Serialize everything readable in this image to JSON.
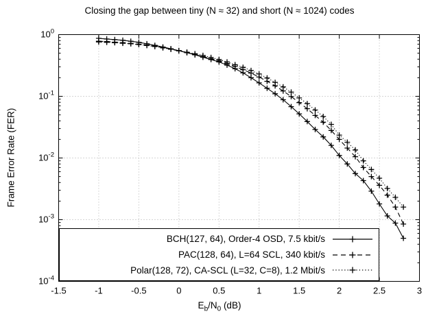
{
  "title": "Closing the gap between tiny (N ≈ 32) and short (N ≈ 1024) codes",
  "axes": {
    "x": {
      "label_parts": {
        "e": "E",
        "b": "b",
        "slash_n": "/N",
        "zero": "0",
        "unit": " (dB)"
      },
      "tick_labels": [
        "-1.5",
        "-1",
        "-0.5",
        "0",
        "0.5",
        "1",
        "1.5",
        "2",
        "2.5",
        "3"
      ],
      "tick_values": [
        -1.5,
        -1,
        -0.5,
        0,
        0.5,
        1,
        1.5,
        2,
        2.5,
        3
      ],
      "min": -1.5,
      "max": 3
    },
    "y": {
      "label": "Frame Error Rate (FER)",
      "base": "10",
      "tick_exponents": [
        "0",
        "-1",
        "-2",
        "-3",
        "-4"
      ],
      "min_exp": -4,
      "max_exp": 0
    }
  },
  "legend": {
    "position": "bottom-left-inside"
  },
  "colors": {
    "line": "#000000",
    "grid": "#a8a8a8",
    "background": "#ffffff",
    "text": "#000000"
  },
  "chart_data": {
    "type": "line",
    "title": "Closing the gap between tiny (N ≈ 32) and short (N ≈ 1024) codes",
    "xlabel": "Eb/N0 (dB)",
    "ylabel": "Frame Error Rate (FER)",
    "xlim": [
      -1.5,
      3
    ],
    "yscale": "log",
    "ylim": [
      0.0001,
      1
    ],
    "grid": true,
    "legend_position": "bottom-left-inside",
    "x": [
      -1.0,
      -0.9,
      -0.8,
      -0.7,
      -0.6,
      -0.5,
      -0.4,
      -0.3,
      -0.2,
      -0.1,
      0.0,
      0.1,
      0.2,
      0.3,
      0.4,
      0.5,
      0.6,
      0.7,
      0.8,
      0.9,
      1.0,
      1.1,
      1.2,
      1.3,
      1.4,
      1.5,
      1.6,
      1.7,
      1.8,
      1.9,
      2.0,
      2.1,
      2.2,
      2.3,
      2.4,
      2.5,
      2.6,
      2.7,
      2.8
    ],
    "series": [
      {
        "name": "BCH(127, 64), Order-4 OSD, 7.5 kbit/s",
        "style": "solid",
        "marker": "plus",
        "values": [
          0.87,
          0.85,
          0.83,
          0.81,
          0.78,
          0.75,
          0.71,
          0.67,
          0.63,
          0.59,
          0.55,
          0.51,
          0.47,
          0.43,
          0.395,
          0.36,
          0.32,
          0.28,
          0.24,
          0.2,
          0.165,
          0.135,
          0.11,
          0.088,
          0.068,
          0.052,
          0.039,
          0.029,
          0.022,
          0.016,
          0.011,
          0.008,
          0.0056,
          0.0043,
          0.0029,
          0.0018,
          0.00115,
          0.00088,
          0.0005
        ]
      },
      {
        "name": "PAC(128, 64), L=64 SCL, 340 kbit/s",
        "style": "dashed",
        "marker": "plus",
        "values": [
          0.78,
          0.77,
          0.755,
          0.74,
          0.72,
          0.7,
          0.675,
          0.645,
          0.615,
          0.58,
          0.545,
          0.51,
          0.475,
          0.44,
          0.405,
          0.375,
          0.34,
          0.305,
          0.27,
          0.238,
          0.205,
          0.175,
          0.148,
          0.122,
          0.099,
          0.079,
          0.063,
          0.049,
          0.038,
          0.028,
          0.02,
          0.0145,
          0.0105,
          0.007,
          0.005,
          0.0036,
          0.0025,
          0.0016,
          0.00085
        ]
      },
      {
        "name": "Polar(128, 72), CA-SCL (L=32, C=8), 1.2 Mbit/s",
        "style": "dotted",
        "marker": "plus",
        "values": [
          0.76,
          0.75,
          0.74,
          0.725,
          0.71,
          0.69,
          0.665,
          0.64,
          0.61,
          0.58,
          0.55,
          0.52,
          0.49,
          0.46,
          0.425,
          0.395,
          0.36,
          0.325,
          0.295,
          0.262,
          0.23,
          0.198,
          0.168,
          0.142,
          0.117,
          0.094,
          0.076,
          0.06,
          0.047,
          0.035,
          0.0235,
          0.018,
          0.0135,
          0.009,
          0.0065,
          0.0047,
          0.0032,
          0.0023,
          0.0016
        ]
      }
    ]
  }
}
